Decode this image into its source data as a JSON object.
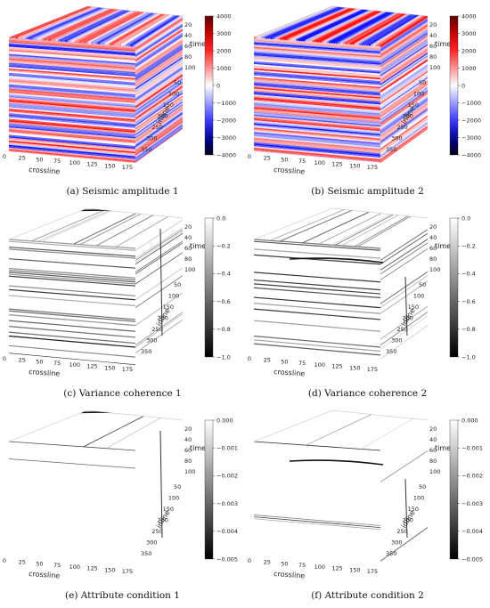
{
  "axes": {
    "x_label": "crossline",
    "y_label": "inline",
    "z_label": "time",
    "x_ticks": [
      "0",
      "25",
      "50",
      "75",
      "100",
      "125",
      "150",
      "175"
    ],
    "y_ticks": [
      "50",
      "100",
      "150",
      "200",
      "250",
      "300",
      "350"
    ],
    "z_ticks": [
      "20",
      "40",
      "60",
      "80",
      "100"
    ]
  },
  "panels": [
    {
      "caption": "(a) Seismic amplitude 1",
      "style": "seismic",
      "variant": 1,
      "colorbar": {
        "cmap": "seismic",
        "ticks": [
          "4000",
          "3000",
          "2000",
          "1000",
          "0",
          "−1000",
          "−2000",
          "−3000",
          "−4000"
        ]
      }
    },
    {
      "caption": "(b) Seismic amplitude 2",
      "style": "seismic",
      "variant": 2,
      "colorbar": {
        "cmap": "seismic",
        "ticks": [
          "4000",
          "3000",
          "2000",
          "1000",
          "0",
          "−1000",
          "−2000",
          "−3000",
          "−4000"
        ]
      }
    },
    {
      "caption": "(c) Variance coherence 1",
      "style": "variance",
      "variant": 1,
      "colorbar": {
        "cmap": "gray",
        "ticks": [
          "0.0",
          "−0.2",
          "−0.4",
          "−0.6",
          "−0.8",
          "−1.0"
        ]
      }
    },
    {
      "caption": "(d) Variance coherence 2",
      "style": "variance",
      "variant": 2,
      "colorbar": {
        "cmap": "gray",
        "ticks": [
          "0.0",
          "−0.2",
          "−0.4",
          "−0.6",
          "−0.8",
          "−1.0"
        ]
      }
    },
    {
      "caption": "(e) Attribute condition 1",
      "style": "attribute",
      "variant": 1,
      "colorbar": {
        "cmap": "gray",
        "ticks": [
          "0.000",
          "−0.001",
          "−0.002",
          "−0.003",
          "−0.004",
          "−0.005"
        ]
      }
    },
    {
      "caption": "(f) Attribute condition 2",
      "style": "attribute",
      "variant": 2,
      "colorbar": {
        "cmap": "gray",
        "ticks": [
          "0.000",
          "−0.001",
          "−0.002",
          "−0.003",
          "−0.004",
          "−0.005"
        ]
      }
    }
  ]
}
